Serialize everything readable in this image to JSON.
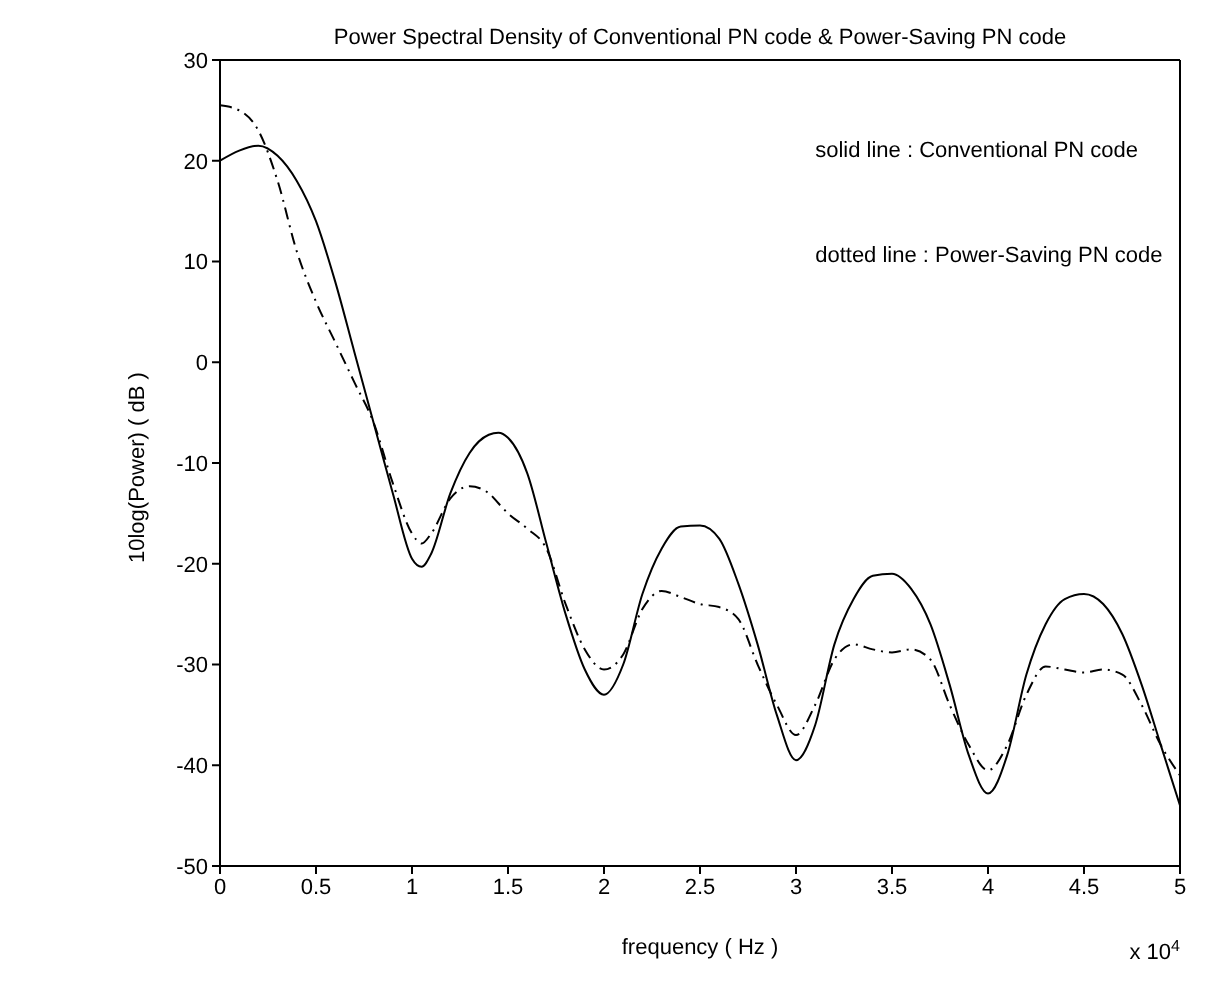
{
  "chart_data": {
    "type": "line",
    "title": "Power Spectral Density of Conventional PN code & Power-Saving PN code",
    "xlabel": "frequency ( Hz )",
    "ylabel": "10log(Power) ( dB )",
    "annotations": [
      "solid line : Conventional PN code",
      "dotted line : Power-Saving PN code",
      "x 10$^{4}$"
    ],
    "x": [
      0,
      0.1,
      0.2,
      0.3,
      0.4,
      0.5,
      0.6,
      0.7,
      0.8,
      0.9,
      1.0,
      1.05,
      1.1,
      1.2,
      1.3,
      1.4,
      1.45,
      1.5,
      1.6,
      1.7,
      1.8,
      1.9,
      2.0,
      2.1,
      2.2,
      2.3,
      2.4,
      2.5,
      2.6,
      2.7,
      2.8,
      2.9,
      3.0,
      3.1,
      3.2,
      3.3,
      3.4,
      3.5,
      3.6,
      3.7,
      3.8,
      3.9,
      4.0,
      4.1,
      4.2,
      4.3,
      4.4,
      4.5,
      4.6,
      4.7,
      4.8,
      4.9,
      5.0
    ],
    "series": [
      {
        "color": "#000000",
        "line_style": "solid",
        "values": [
          20,
          21,
          21.5,
          20.5,
          18,
          14,
          8,
          1,
          -6,
          -13,
          -19.5,
          -20.3,
          -19,
          -13,
          -9,
          -7.2,
          -7,
          -7.5,
          -11,
          -18,
          -25,
          -30.5,
          -33,
          -30,
          -23,
          -18.5,
          -16.3,
          -16.2,
          -17.5,
          -22,
          -28,
          -35,
          -39.5,
          -36,
          -28,
          -23.5,
          -21.2,
          -21,
          -22.5,
          -26,
          -32,
          -39,
          -42.8,
          -39,
          -31,
          -26,
          -23.5,
          -23,
          -24,
          -27,
          -32,
          -38,
          -44
        ]
      },
      {
        "color": "#000000",
        "line_style": "dashed",
        "values": [
          25.5,
          25,
          23,
          18,
          11,
          6,
          2,
          -2,
          -6,
          -12,
          -17,
          -18,
          -17,
          -13.5,
          -12.3,
          -13,
          -14,
          -15,
          -16.5,
          -18.5,
          -24,
          -28.5,
          -30.5,
          -29,
          -24.5,
          -22.7,
          -23.3,
          -24,
          -24.3,
          -25.5,
          -30,
          -34,
          -37,
          -34,
          -29.5,
          -28,
          -28.5,
          -28.8,
          -28.5,
          -29.5,
          -34,
          -38,
          -40.5,
          -38,
          -33,
          -30.2,
          -30.5,
          -30.8,
          -30.5,
          -31,
          -34,
          -38,
          -41
        ]
      }
    ],
    "xlim": [
      0,
      5
    ],
    "xticks": [
      0,
      0.5,
      1,
      1.5,
      2,
      2.5,
      3,
      3.5,
      4,
      4.5,
      5
    ],
    "ylim": [
      -50,
      30
    ],
    "yticks": [
      -50,
      -40,
      -30,
      -20,
      -10,
      0,
      10,
      20,
      30
    ],
    "grid": false,
    "legend": false,
    "marker": "none"
  }
}
